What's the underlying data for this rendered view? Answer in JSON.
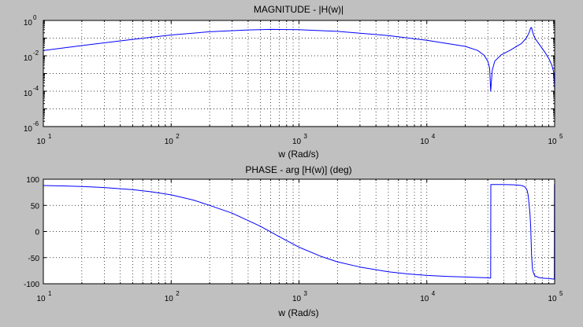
{
  "figure": {
    "background": "#c0c0c0",
    "axes_background": "#ffffff",
    "line_color": "#0000ff"
  },
  "chart_data": [
    {
      "type": "line",
      "title": "MAGNITUDE - |H(w)|",
      "xlabel": "w (Rad/s)",
      "ylabel": "",
      "xscale": "log",
      "yscale": "log",
      "xlim": [
        10,
        100000
      ],
      "ylim": [
        1e-06,
        1
      ],
      "grid": true,
      "x_ticks": [
        {
          "base": "10",
          "exp": "1"
        },
        {
          "base": "10",
          "exp": "2"
        },
        {
          "base": "10",
          "exp": "3"
        },
        {
          "base": "10",
          "exp": "4"
        },
        {
          "base": "10",
          "exp": "5"
        }
      ],
      "y_ticks": [
        {
          "base": "10",
          "exp": "0",
          "value": 1
        },
        {
          "base": "10",
          "exp": "-2",
          "value": 0.01
        },
        {
          "base": "10",
          "exp": "-4",
          "value": 0.0001
        },
        {
          "base": "10",
          "exp": "-6",
          "value": 1e-06
        }
      ],
      "series": [
        {
          "x": [
            10,
            20,
            50,
            100,
            200,
            400,
            600,
            1000,
            2000,
            5000,
            10000,
            20000,
            25000,
            28000,
            30000,
            31000,
            31600,
            32500,
            34000,
            38000,
            45000,
            55000,
            60000,
            63000,
            65000,
            66000,
            67500,
            70000,
            75000,
            80000,
            85000,
            90000,
            95000,
            98000,
            99000,
            100000
          ],
          "y": [
            0.02,
            0.038,
            0.085,
            0.15,
            0.23,
            0.29,
            0.31,
            0.3,
            0.24,
            0.14,
            0.075,
            0.034,
            0.02,
            0.011,
            0.005,
            0.002,
            0.0001,
            0.0015,
            0.005,
            0.011,
            0.021,
            0.05,
            0.1,
            0.19,
            0.38,
            0.4,
            0.2,
            0.1,
            0.05,
            0.026,
            0.014,
            0.007,
            0.003,
            0.0013,
            0.0008,
            0.0001
          ]
        }
      ]
    },
    {
      "type": "line",
      "title": "PHASE - arg [H(w)] (deg)",
      "xlabel": "w (Rad/s)",
      "ylabel": "",
      "xscale": "log",
      "yscale": "linear",
      "xlim": [
        10,
        100000
      ],
      "ylim": [
        -100,
        100
      ],
      "grid": true,
      "x_ticks": [
        {
          "base": "10",
          "exp": "1"
        },
        {
          "base": "10",
          "exp": "2"
        },
        {
          "base": "10",
          "exp": "3"
        },
        {
          "base": "10",
          "exp": "4"
        },
        {
          "base": "10",
          "exp": "5"
        }
      ],
      "y_ticks": [
        {
          "label": "100",
          "value": 100
        },
        {
          "label": "50",
          "value": 50
        },
        {
          "label": "0",
          "value": 0
        },
        {
          "label": "-50",
          "value": -50
        },
        {
          "label": "-100",
          "value": -100
        }
      ],
      "series": [
        {
          "x": [
            10,
            15,
            20,
            30,
            50,
            70,
            100,
            150,
            200,
            300,
            500,
            700,
            1000,
            1500,
            2000,
            3000,
            5000,
            7000,
            10000,
            15000,
            20000,
            25000,
            30000,
            31000,
            31600,
            31700,
            33000,
            40000,
            50000,
            55000,
            58000,
            60000,
            61000,
            62000,
            63000,
            64000,
            65000,
            65500,
            66000,
            67000,
            68000,
            70000,
            75000,
            80000,
            90000,
            98000,
            99500,
            99700,
            100000
          ],
          "y": [
            88,
            87,
            86,
            84,
            80,
            76,
            70,
            60,
            50,
            35,
            10,
            -10,
            -30,
            -48,
            -58,
            -68,
            -77,
            -81,
            -84,
            -86,
            -87,
            -88,
            -88.5,
            -89,
            -89,
            90,
            90,
            90,
            89,
            88,
            86,
            82,
            78,
            70,
            55,
            35,
            10,
            -20,
            -45,
            -70,
            -78,
            -85,
            -88,
            -89,
            -90,
            -91,
            -91,
            90,
            90
          ]
        }
      ]
    }
  ]
}
